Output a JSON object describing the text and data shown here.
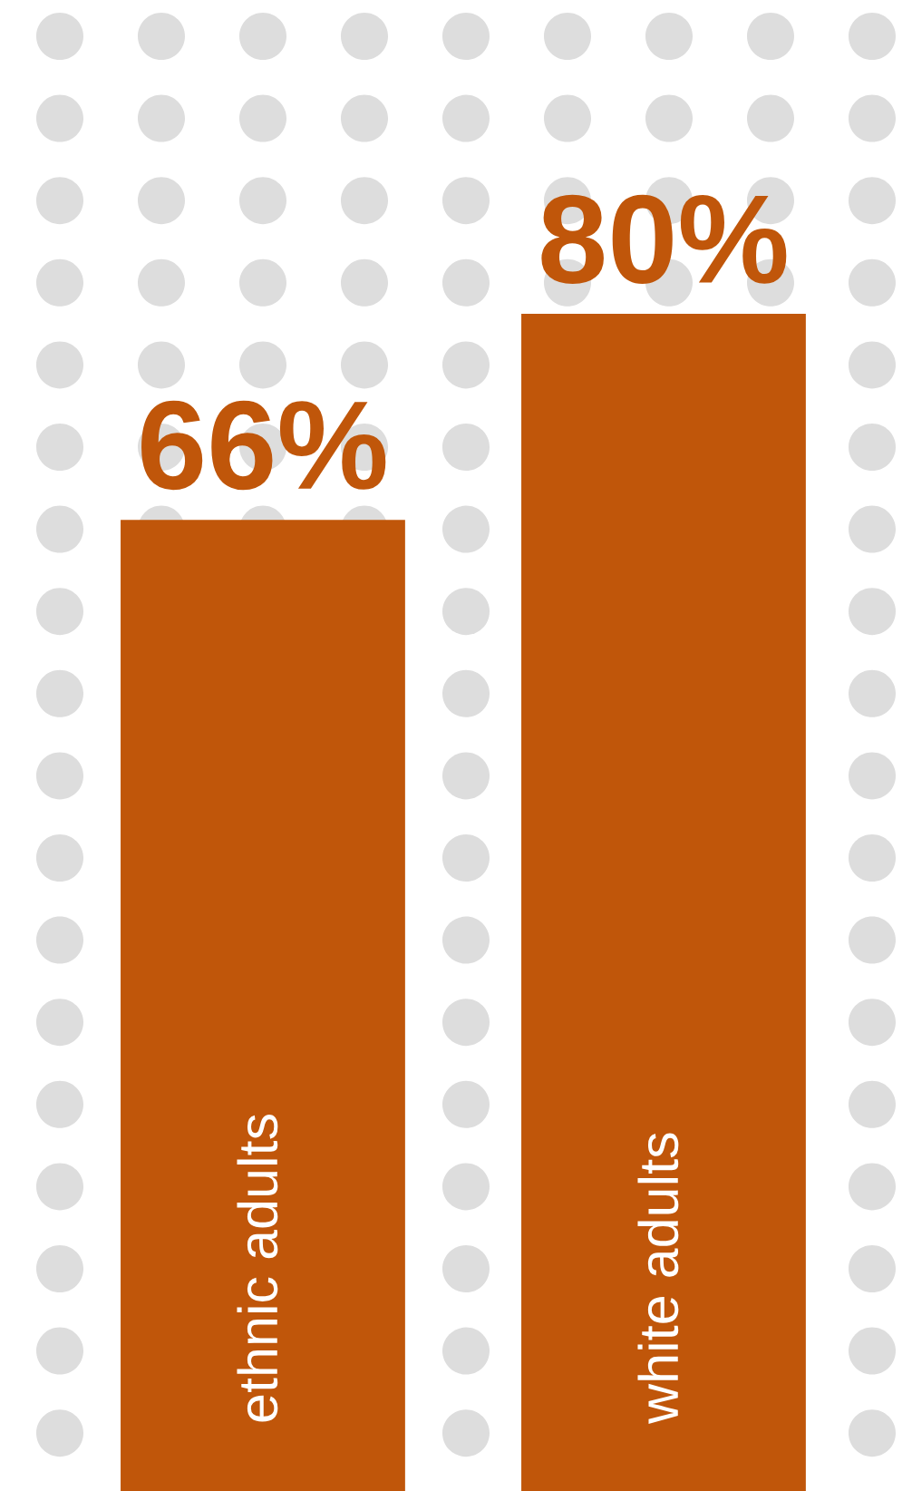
{
  "chart_data": {
    "type": "bar",
    "categories": [
      "ethnic adults",
      "white adults"
    ],
    "values": [
      66,
      80
    ],
    "value_labels": [
      "66%",
      "80%"
    ],
    "color": "#c0560a"
  }
}
